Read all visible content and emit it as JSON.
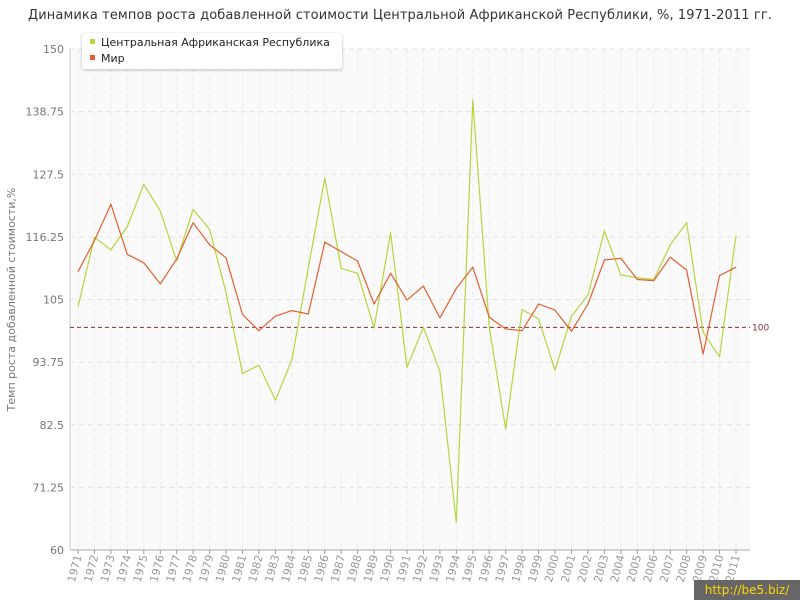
{
  "title": "Динамика темпов роста добавленной стоимости Центральной Африканской Республики, %, 1971-2011 гг.",
  "watermark": "http://be5.biz/",
  "chart_data": {
    "type": "line",
    "ylabel": "Темп роста добавленной стоимости,%",
    "xlabel": "",
    "ylim": [
      60,
      150
    ],
    "yticks": [
      "150",
      "138.75",
      "127.5",
      "116.25",
      "105",
      "93.75",
      "82.5",
      "71.25",
      "60"
    ],
    "x": [
      "1971",
      "1972",
      "1973",
      "1974",
      "1975",
      "1976",
      "1977",
      "1978",
      "1979",
      "1980",
      "1981",
      "1982",
      "1983",
      "1984",
      "1985",
      "1986",
      "1987",
      "1988",
      "1989",
      "1990",
      "1991",
      "1992",
      "1993",
      "1994",
      "1995",
      "1996",
      "1997",
      "1998",
      "1999",
      "2000",
      "2001",
      "2002",
      "2003",
      "2004",
      "2005",
      "2006",
      "2007",
      "2008",
      "2009",
      "2010",
      "2011"
    ],
    "series": [
      {
        "name": "Центральная Африканская Республика",
        "color": "#b5d53e",
        "values": [
          103.7,
          116.2,
          113.9,
          118.1,
          125.7,
          120.9,
          111.9,
          121.2,
          117.6,
          106.3,
          91.7,
          93.2,
          86.9,
          94.2,
          110.7,
          126.8,
          110.6,
          109.7,
          99.9,
          117.0,
          92.8,
          100.0,
          92.1,
          64.9,
          140.9,
          100.0,
          81.7,
          103.2,
          101.5,
          92.3,
          102.0,
          105.8,
          117.3,
          109.4,
          108.9,
          108.6,
          114.8,
          118.8,
          99.1,
          94.7,
          116.5
        ]
      },
      {
        "name": "Мир",
        "color": "#e06030",
        "values": [
          110.0,
          115.6,
          122.1,
          113.1,
          111.6,
          107.8,
          112.3,
          118.8,
          114.8,
          112.5,
          102.3,
          99.4,
          102.0,
          103.0,
          102.4,
          115.3,
          113.6,
          111.9,
          104.2,
          109.7,
          104.9,
          107.4,
          101.7,
          107.0,
          110.8,
          101.8,
          99.7,
          99.4,
          104.2,
          103.1,
          99.3,
          104.2,
          112.1,
          112.4,
          108.6,
          108.4,
          112.6,
          110.3,
          95.2,
          109.3,
          110.8
        ]
      }
    ],
    "reference_line": {
      "value": 100,
      "label": "100",
      "color": "#8b2e2e"
    },
    "grid": true,
    "legend": "top-left"
  }
}
